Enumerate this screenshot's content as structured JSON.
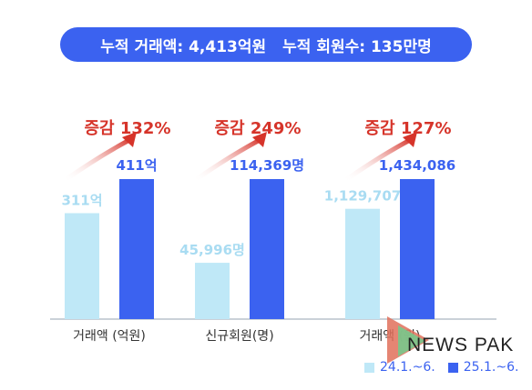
{
  "banner": {
    "part1": "누적 거래액: 4,413억원",
    "part2": "누적 회원수: 135만명"
  },
  "colors": {
    "light": "#bfe8f7",
    "dark": "#3b62f0",
    "growth": "#d6342a",
    "baseline": "#b9c2cc"
  },
  "chart_data": {
    "type": "bar",
    "categories": [
      "거래액 (억원)",
      "신규회원(명)",
      "거래액 (원)"
    ],
    "series": [
      {
        "name": "24.1.~6.",
        "values": [
          311,
          45996,
          1129707
        ],
        "labels": [
          "311억",
          "45,996명",
          "1,129,707"
        ]
      },
      {
        "name": "25.1.~6.",
        "values": [
          411,
          114369,
          1434086
        ],
        "labels": [
          "411억",
          "114,369명",
          "1,434,086"
        ]
      }
    ],
    "annotations": [
      "증감 132%",
      "증감 249%",
      "증감 127%"
    ]
  },
  "watermark": {
    "brand": "NEWS PAK"
  },
  "legend": {
    "items": [
      "24.1.~6.",
      "25.1.~6."
    ]
  }
}
